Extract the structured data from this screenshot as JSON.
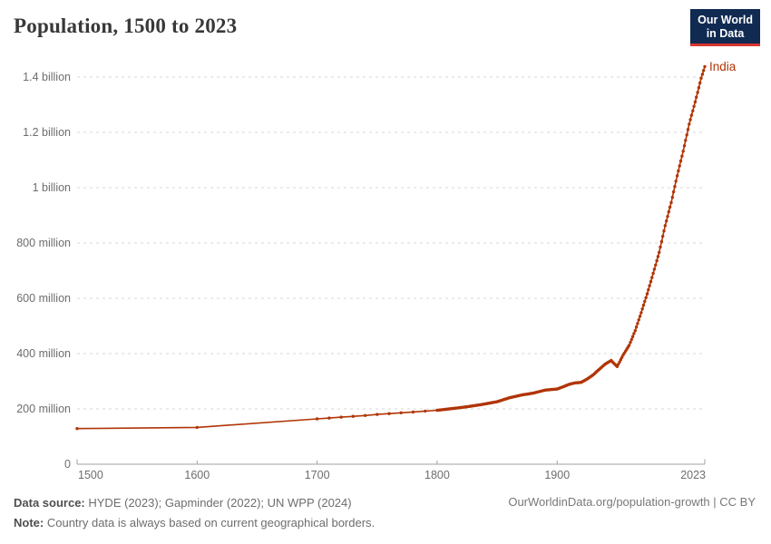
{
  "header": {
    "title": "Population, 1500 to 2023"
  },
  "logo": {
    "line1": "Our World",
    "line2": "in Data"
  },
  "colors": {
    "series_india": "#b13507",
    "logo_background": "#102a52",
    "logo_underline": "#d8352e",
    "gridline": "#d7d7d7",
    "axis": "#a0a0a0",
    "tick_text": "#6d6d6d"
  },
  "chart_data": {
    "type": "line",
    "title": "Population, 1500 to 2023",
    "xlabel": "",
    "ylabel": "",
    "values_unit": "millions of people",
    "x_range": [
      1500,
      2023
    ],
    "y_range_millions": [
      0,
      1400
    ],
    "grid": true,
    "legend_position": "end-of-line label",
    "x_ticks": [
      {
        "year": 1500,
        "label": "1500"
      },
      {
        "year": 1600,
        "label": "1600"
      },
      {
        "year": 1700,
        "label": "1700"
      },
      {
        "year": 1800,
        "label": "1800"
      },
      {
        "year": 1900,
        "label": "1900"
      },
      {
        "year": 2023,
        "label": "2023"
      }
    ],
    "y_ticks": [
      {
        "value_millions": 0,
        "label": "0"
      },
      {
        "value_millions": 200,
        "label": "200 million"
      },
      {
        "value_millions": 400,
        "label": "400 million"
      },
      {
        "value_millions": 600,
        "label": "600 million"
      },
      {
        "value_millions": 800,
        "label": "800 million"
      },
      {
        "value_millions": 1000,
        "label": "1 billion"
      },
      {
        "value_millions": 1200,
        "label": "1.2 billion"
      },
      {
        "value_millions": 1400,
        "label": "1.4 billion"
      }
    ],
    "series": [
      {
        "name": "India",
        "color": "#b13507",
        "points_year_millions": [
          [
            1500,
            129
          ],
          [
            1600,
            133
          ],
          [
            1700,
            164
          ],
          [
            1710,
            167
          ],
          [
            1720,
            170
          ],
          [
            1730,
            173
          ],
          [
            1740,
            176
          ],
          [
            1750,
            180
          ],
          [
            1760,
            183
          ],
          [
            1770,
            186
          ],
          [
            1780,
            189
          ],
          [
            1790,
            192
          ],
          [
            1800,
            195
          ],
          [
            1810,
            200
          ],
          [
            1820,
            205
          ],
          [
            1830,
            211
          ],
          [
            1840,
            218
          ],
          [
            1850,
            226
          ],
          [
            1860,
            240
          ],
          [
            1870,
            250
          ],
          [
            1880,
            257
          ],
          [
            1890,
            268
          ],
          [
            1895,
            270
          ],
          [
            1900,
            272
          ],
          [
            1905,
            280
          ],
          [
            1910,
            289
          ],
          [
            1915,
            294
          ],
          [
            1920,
            296
          ],
          [
            1925,
            308
          ],
          [
            1930,
            323
          ],
          [
            1935,
            343
          ],
          [
            1940,
            362
          ],
          [
            1945,
            375
          ],
          [
            1950,
            353
          ],
          [
            1955,
            395
          ],
          [
            1960,
            430
          ],
          [
            1965,
            483
          ],
          [
            1970,
            548
          ],
          [
            1975,
            616
          ],
          [
            1980,
            690
          ],
          [
            1985,
            766
          ],
          [
            1990,
            863
          ],
          [
            1995,
            946
          ],
          [
            2000,
            1043
          ],
          [
            2005,
            1132
          ],
          [
            2010,
            1230
          ],
          [
            2015,
            1310
          ],
          [
            2020,
            1396
          ],
          [
            2023,
            1438
          ]
        ]
      }
    ]
  },
  "footer": {
    "datasource_label": "Data source:",
    "datasource": "HYDE (2023); Gapminder (2022); UN WPP (2024)",
    "note_label": "Note:",
    "note": "Country data is always based on current geographical borders.",
    "link": "OurWorldinData.org/population-growth | CC BY"
  }
}
